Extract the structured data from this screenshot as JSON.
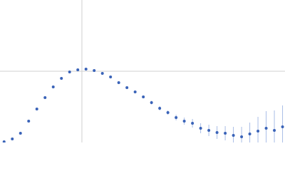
{
  "chart_data": {
    "type": "scatter",
    "color": "#3a63b8",
    "error_color": "#a9bde6",
    "xlim": [
      0,
      3.48
    ],
    "ylim": [
      0,
      2
    ],
    "xticks": [
      1
    ],
    "yticks": [
      1
    ],
    "grid": true,
    "x": [
      0.05,
      0.15,
      0.25,
      0.35,
      0.45,
      0.55,
      0.65,
      0.75,
      0.85,
      0.95,
      1.05,
      1.15,
      1.25,
      1.35,
      1.45,
      1.55,
      1.65,
      1.75,
      1.85,
      1.95,
      2.05,
      2.15,
      2.25,
      2.35,
      2.45,
      2.55,
      2.65,
      2.75,
      2.85,
      2.95,
      3.05,
      3.15,
      3.25,
      3.35,
      3.45
    ],
    "values": [
      0.01,
      0.05,
      0.13,
      0.3,
      0.47,
      0.63,
      0.78,
      0.9,
      0.99,
      1.02,
      1.03,
      1.01,
      0.97,
      0.92,
      0.84,
      0.77,
      0.71,
      0.64,
      0.56,
      0.48,
      0.42,
      0.35,
      0.3,
      0.27,
      0.2,
      0.17,
      0.14,
      0.13,
      0.1,
      0.08,
      0.12,
      0.16,
      0.2,
      0.17,
      0.22
    ],
    "errors": [
      0.005,
      0.005,
      0.005,
      0.005,
      0.005,
      0.005,
      0.005,
      0.005,
      0.008,
      0.008,
      0.01,
      0.01,
      0.01,
      0.012,
      0.015,
      0.015,
      0.02,
      0.02,
      0.025,
      0.03,
      0.03,
      0.04,
      0.05,
      0.06,
      0.07,
      0.08,
      0.09,
      0.1,
      0.12,
      0.14,
      0.16,
      0.2,
      0.24,
      0.28,
      0.3
    ]
  }
}
